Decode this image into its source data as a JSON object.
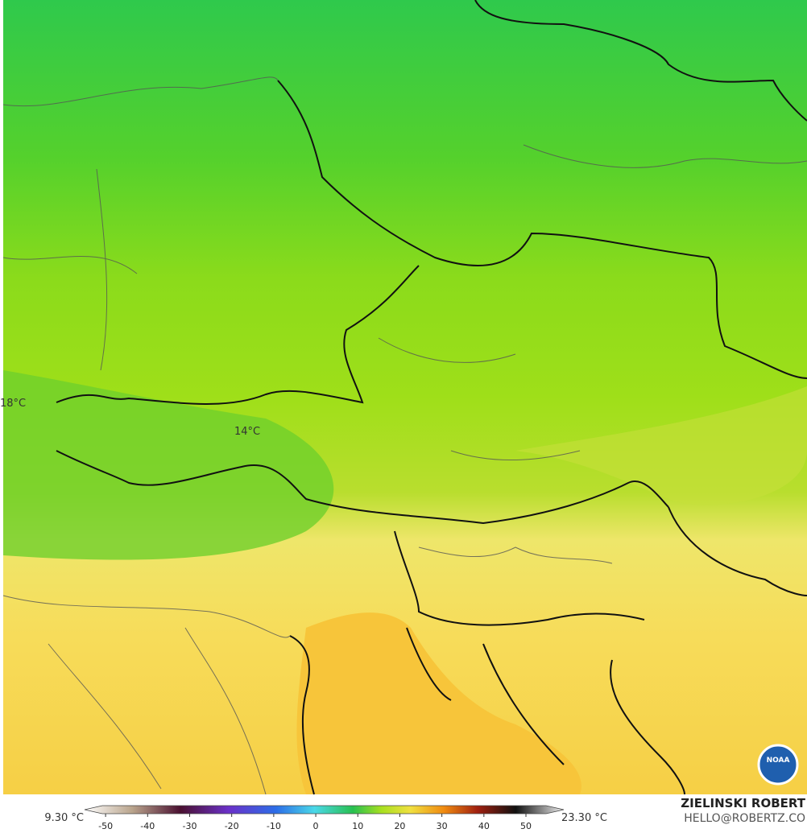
{
  "map": {
    "labels": [
      "18°C",
      "14°C"
    ]
  },
  "colorbar": {
    "min_label": "9.30 °C",
    "max_label": "23.30 °C",
    "lim": [
      -55,
      59
    ],
    "ticks": [
      -50,
      -40,
      -30,
      -20,
      -10,
      0,
      10,
      20,
      30,
      40,
      50
    ]
  },
  "credits": {
    "author": "ZIELINSKI ROBERT",
    "email": "HELLO@ROBERTZ.CO",
    "logo": "NOAA"
  }
}
